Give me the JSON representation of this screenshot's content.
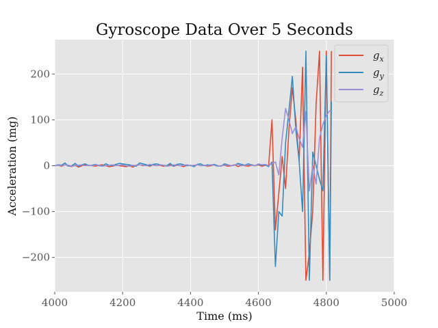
{
  "chart_data": {
    "type": "line",
    "title": "Gyroscope Data Over 5 Seconds",
    "xlabel": "Time (ms)",
    "ylabel": "Acceleration (mg)",
    "xlim": [
      4000,
      5000
    ],
    "ylim": [
      -275,
      275
    ],
    "xticks": [
      4000,
      4200,
      4400,
      4600,
      4800,
      5000
    ],
    "yticks": [
      -200,
      -100,
      0,
      100,
      200
    ],
    "xtick_labels": [
      "4000",
      "4200",
      "4400",
      "4600",
      "4800",
      "5000"
    ],
    "ytick_labels": [
      "−200",
      "−100",
      "0",
      "100",
      "200"
    ],
    "grid": true,
    "legend_position": "top-right",
    "x": [
      4000,
      4010,
      4020,
      4030,
      4040,
      4050,
      4060,
      4070,
      4080,
      4090,
      4100,
      4110,
      4120,
      4130,
      4140,
      4150,
      4160,
      4170,
      4180,
      4190,
      4200,
      4210,
      4220,
      4230,
      4240,
      4250,
      4260,
      4270,
      4280,
      4290,
      4300,
      4310,
      4320,
      4330,
      4340,
      4350,
      4360,
      4370,
      4380,
      4390,
      4400,
      4410,
      4420,
      4430,
      4440,
      4450,
      4460,
      4470,
      4480,
      4490,
      4500,
      4510,
      4520,
      4530,
      4540,
      4550,
      4560,
      4570,
      4580,
      4590,
      4600,
      4610,
      4620,
      4630,
      4640,
      4650,
      4660,
      4670,
      4680,
      4690,
      4700,
      4710,
      4720,
      4730,
      4740,
      4750,
      4760,
      4770,
      4780,
      4790,
      4800,
      4810,
      4815
    ],
    "series": [
      {
        "name": "g_x",
        "color": "#e24a33",
        "values": [
          0,
          1,
          -1,
          2,
          0,
          -2,
          1,
          -3,
          0,
          2,
          1,
          0,
          -1,
          1,
          2,
          0,
          -2,
          -1,
          1,
          0,
          -1,
          -2,
          0,
          -3,
          1,
          2,
          0,
          1,
          -1,
          2,
          0,
          1,
          -1,
          0,
          2,
          -1,
          1,
          0,
          -2,
          1,
          0,
          -1,
          2,
          0,
          1,
          -1,
          0,
          2,
          -1,
          0,
          1,
          -1,
          0,
          2,
          -2,
          1,
          0,
          -1,
          1,
          0,
          2,
          -1,
          1,
          0,
          100,
          -140,
          -60,
          20,
          -50,
          80,
          170,
          100,
          10,
          215,
          -250,
          -190,
          -100,
          135,
          250,
          -250,
          250,
          -250,
          250
        ]
      },
      {
        "name": "g_y",
        "color": "#348abd",
        "values": [
          0,
          2,
          1,
          6,
          -1,
          0,
          5,
          -1,
          2,
          4,
          0,
          1,
          3,
          0,
          -1,
          4,
          1,
          0,
          3,
          5,
          4,
          3,
          2,
          0,
          -1,
          6,
          4,
          2,
          0,
          3,
          4,
          2,
          1,
          0,
          5,
          -1,
          3,
          4,
          2,
          0,
          1,
          -2,
          3,
          4,
          0,
          2,
          1,
          3,
          0,
          -1,
          4,
          2,
          0,
          1,
          5,
          3,
          1,
          4,
          2,
          0,
          3,
          1,
          2,
          -2,
          8,
          -220,
          -100,
          -110,
          50,
          120,
          195,
          80,
          10,
          -100,
          250,
          -250,
          30,
          0,
          -30,
          -55,
          240,
          -250,
          140
        ]
      },
      {
        "name": "g_z",
        "color": "#988ed5",
        "values": [
          0,
          1,
          0,
          2,
          1,
          -1,
          0,
          1,
          2,
          0,
          1,
          0,
          2,
          1,
          -1,
          0,
          1,
          2,
          0,
          1,
          2,
          0,
          -1,
          1,
          0,
          2,
          1,
          0,
          3,
          1,
          0,
          2,
          1,
          -1,
          0,
          2,
          1,
          0,
          1,
          2,
          0,
          1,
          2,
          0,
          1,
          0,
          2,
          1,
          -1,
          0,
          1,
          2,
          0,
          1,
          3,
          0,
          1,
          2,
          1,
          0,
          4,
          2,
          3,
          0,
          5,
          8,
          -20,
          60,
          125,
          100,
          70,
          85,
          60,
          40,
          118,
          -55,
          0,
          -40,
          60,
          90,
          110,
          120,
          120
        ]
      }
    ],
    "legend_labels": [
      {
        "base": "g",
        "sub": "x"
      },
      {
        "base": "g",
        "sub": "y"
      },
      {
        "base": "g",
        "sub": "z"
      }
    ]
  }
}
